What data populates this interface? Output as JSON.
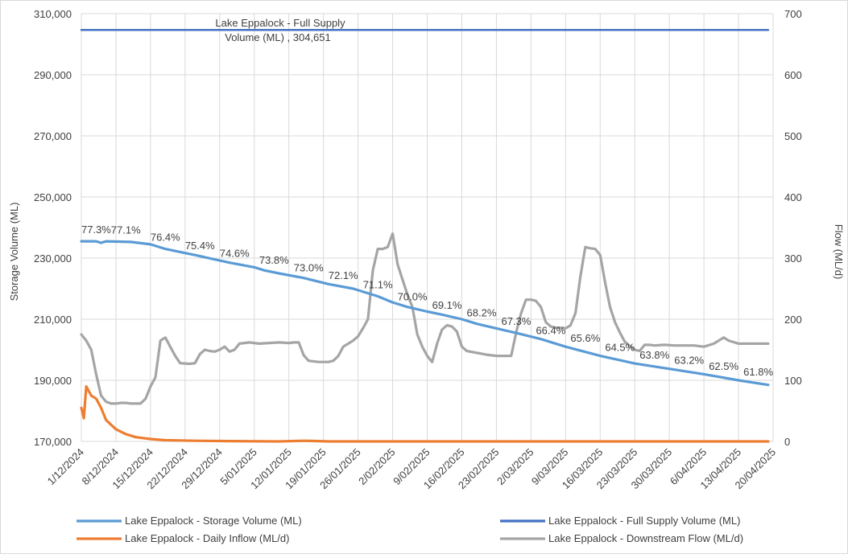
{
  "chart_data": {
    "type": "line",
    "ylabel": "Storage Volume (ML)",
    "y2label": "Flow (ML/d)",
    "ylim": [
      170000,
      310000
    ],
    "y2lim": [
      0,
      700
    ],
    "y_ticks": [
      "170,000",
      "190,000",
      "210,000",
      "230,000",
      "250,000",
      "270,000",
      "290,000",
      "310,000"
    ],
    "y2_ticks": [
      "0",
      "100",
      "200",
      "300",
      "400",
      "500",
      "600",
      "700"
    ],
    "x_ticks": [
      "1/12/2024",
      "8/12/2024",
      "15/12/2024",
      "22/12/2024",
      "29/12/2024",
      "5/01/2025",
      "12/01/2025",
      "19/01/2025",
      "26/01/2025",
      "2/02/2025",
      "9/02/2025",
      "16/02/2025",
      "23/02/2025",
      "2/03/2025",
      "9/03/2025",
      "16/03/2025",
      "23/03/2025",
      "30/03/2025",
      "6/04/2025",
      "13/04/2025",
      "20/04/2025"
    ],
    "x_range_days": [
      0,
      140
    ],
    "grid": "vertical and horizontal",
    "legend_position": "bottom",
    "annotation": {
      "line1": "Lake Eppalock - Full Supply",
      "line2": "Volume (ML) ,  304,651"
    },
    "series": [
      {
        "name": "Lake Eppalock - Storage Volume (ML)",
        "axis": "left",
        "color": "#5B9BD5",
        "points": [
          [
            0,
            235500
          ],
          [
            3,
            235500
          ],
          [
            4,
            235000
          ],
          [
            5,
            235500
          ],
          [
            10,
            235300
          ],
          [
            14,
            234500
          ],
          [
            17,
            233000
          ],
          [
            20,
            232000
          ],
          [
            23,
            231000
          ],
          [
            30,
            228500
          ],
          [
            35,
            227000
          ],
          [
            37,
            226000
          ],
          [
            40,
            225000
          ],
          [
            45,
            223500
          ],
          [
            50,
            221500
          ],
          [
            55,
            220000
          ],
          [
            60,
            217500
          ],
          [
            63,
            215500
          ],
          [
            66,
            214000
          ],
          [
            70,
            212500
          ],
          [
            73,
            211500
          ],
          [
            77,
            210000
          ],
          [
            80,
            208500
          ],
          [
            84,
            207000
          ],
          [
            88,
            205500
          ],
          [
            93,
            203500
          ],
          [
            98,
            201000
          ],
          [
            105,
            198000
          ],
          [
            112,
            195500
          ],
          [
            120,
            193500
          ],
          [
            126,
            192000
          ],
          [
            133,
            190000
          ],
          [
            137,
            189000
          ],
          [
            139,
            188500
          ]
        ]
      },
      {
        "name": "Lake Eppalock - Full Supply Volume (ML)",
        "axis": "left",
        "color": "#4472C4",
        "points": [
          [
            0,
            304651
          ],
          [
            139,
            304651
          ]
        ]
      },
      {
        "name": "Lake Eppalock - Daily Inflow (ML/d)",
        "axis": "right",
        "color": "#ED7D31",
        "points": [
          [
            0,
            55
          ],
          [
            0.5,
            38
          ],
          [
            1,
            90
          ],
          [
            2,
            75
          ],
          [
            3,
            70
          ],
          [
            4,
            55
          ],
          [
            5,
            35
          ],
          [
            7,
            20
          ],
          [
            9,
            12
          ],
          [
            11,
            7
          ],
          [
            14,
            4
          ],
          [
            17,
            2
          ],
          [
            23,
            1
          ],
          [
            30,
            0.5
          ],
          [
            40,
            0
          ],
          [
            45,
            1
          ],
          [
            48,
            0.5
          ],
          [
            50,
            0
          ],
          [
            139,
            0
          ]
        ]
      },
      {
        "name": "Lake Eppalock - Downstream Flow (ML/d)",
        "axis": "right",
        "color": "#A5A5A5",
        "points": [
          [
            0,
            175
          ],
          [
            1,
            165
          ],
          [
            2,
            150
          ],
          [
            3,
            110
          ],
          [
            4,
            75
          ],
          [
            5,
            65
          ],
          [
            6,
            62
          ],
          [
            7,
            62
          ],
          [
            8,
            63
          ],
          [
            9,
            63
          ],
          [
            10,
            62
          ],
          [
            11,
            62
          ],
          [
            12,
            62
          ],
          [
            13,
            70
          ],
          [
            14,
            90
          ],
          [
            15,
            105
          ],
          [
            16,
            165
          ],
          [
            17,
            170
          ],
          [
            18,
            155
          ],
          [
            19,
            140
          ],
          [
            20,
            128
          ],
          [
            22,
            127
          ],
          [
            23,
            128
          ],
          [
            24,
            143
          ],
          [
            25,
            150
          ],
          [
            26,
            148
          ],
          [
            27,
            147
          ],
          [
            28,
            150
          ],
          [
            29,
            155
          ],
          [
            30,
            147
          ],
          [
            31,
            150
          ],
          [
            32,
            160
          ],
          [
            34,
            162
          ],
          [
            36,
            160
          ],
          [
            38,
            161
          ],
          [
            40,
            162
          ],
          [
            42,
            161
          ],
          [
            43,
            162
          ],
          [
            44,
            162
          ],
          [
            45,
            141
          ],
          [
            46,
            132
          ],
          [
            48,
            130
          ],
          [
            50,
            130
          ],
          [
            51,
            132
          ],
          [
            52,
            140
          ],
          [
            53,
            155
          ],
          [
            55,
            165
          ],
          [
            56,
            172
          ],
          [
            57,
            185
          ],
          [
            58,
            200
          ],
          [
            59,
            280
          ],
          [
            60,
            315
          ],
          [
            61,
            315
          ],
          [
            62,
            318
          ],
          [
            63,
            340
          ],
          [
            64,
            290
          ],
          [
            65,
            265
          ],
          [
            66,
            240
          ],
          [
            67,
            220
          ],
          [
            68,
            175
          ],
          [
            69,
            155
          ],
          [
            70,
            140
          ],
          [
            71,
            130
          ],
          [
            72,
            160
          ],
          [
            73,
            183
          ],
          [
            74,
            190
          ],
          [
            75,
            188
          ],
          [
            76,
            180
          ],
          [
            77,
            155
          ],
          [
            78,
            148
          ],
          [
            80,
            145
          ],
          [
            82,
            142
          ],
          [
            84,
            140
          ],
          [
            86,
            140
          ],
          [
            87,
            140
          ],
          [
            88,
            178
          ],
          [
            89,
            210
          ],
          [
            90,
            232
          ],
          [
            91,
            232
          ],
          [
            92,
            230
          ],
          [
            93,
            220
          ],
          [
            94,
            195
          ],
          [
            95,
            188
          ],
          [
            96,
            186
          ],
          [
            97,
            186
          ],
          [
            98,
            185
          ],
          [
            99,
            190
          ],
          [
            100,
            210
          ],
          [
            101,
            270
          ],
          [
            102,
            318
          ],
          [
            103,
            316
          ],
          [
            104,
            315
          ],
          [
            105,
            305
          ],
          [
            106,
            260
          ],
          [
            107,
            220
          ],
          [
            108,
            195
          ],
          [
            109,
            178
          ],
          [
            110,
            163
          ],
          [
            111,
            156
          ],
          [
            112,
            150
          ],
          [
            113,
            148
          ],
          [
            114,
            158
          ],
          [
            115,
            158
          ],
          [
            116,
            157
          ],
          [
            118,
            158
          ],
          [
            120,
            157
          ],
          [
            124,
            157
          ],
          [
            126,
            155
          ],
          [
            128,
            160
          ],
          [
            130,
            170
          ],
          [
            131,
            165
          ],
          [
            133,
            160
          ],
          [
            139,
            160
          ]
        ]
      }
    ],
    "data_labels": [
      {
        "day": 3,
        "volume": 235500,
        "text": "77.3%"
      },
      {
        "day": 9,
        "volume": 235400,
        "text": "77.1%"
      },
      {
        "day": 17,
        "volume": 233000,
        "text": "76.4%"
      },
      {
        "day": 24,
        "volume": 230200,
        "text": "75.4%"
      },
      {
        "day": 31,
        "volume": 227800,
        "text": "74.6%"
      },
      {
        "day": 39,
        "volume": 225500,
        "text": "73.8%"
      },
      {
        "day": 46,
        "volume": 223000,
        "text": "73.0%"
      },
      {
        "day": 53,
        "volume": 220500,
        "text": "72.1%"
      },
      {
        "day": 60,
        "volume": 217500,
        "text": "71.1%"
      },
      {
        "day": 67,
        "volume": 213500,
        "text": "70.0%"
      },
      {
        "day": 74,
        "volume": 210800,
        "text": "69.1%"
      },
      {
        "day": 81,
        "volume": 208300,
        "text": "68.2%"
      },
      {
        "day": 88,
        "volume": 205500,
        "text": "67.3%"
      },
      {
        "day": 95,
        "volume": 202500,
        "text": "66.4%"
      },
      {
        "day": 102,
        "volume": 200000,
        "text": "65.6%"
      },
      {
        "day": 109,
        "volume": 197000,
        "text": "64.5%"
      },
      {
        "day": 116,
        "volume": 194500,
        "text": "63.8%"
      },
      {
        "day": 123,
        "volume": 192800,
        "text": "63.2%"
      },
      {
        "day": 130,
        "volume": 190800,
        "text": "62.5%"
      },
      {
        "day": 137,
        "volume": 189000,
        "text": "61.8%"
      }
    ]
  }
}
